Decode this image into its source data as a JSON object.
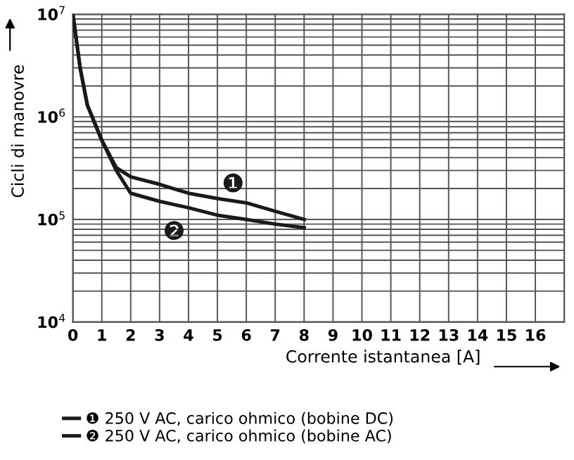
{
  "chart_data": {
    "type": "line",
    "xlabel": "Corrente istantanea [A]",
    "ylabel": "Cicli di manovre",
    "log": "y",
    "grid": true,
    "legend": "bottom",
    "line_style": "solid",
    "marker": "none",
    "xlim": [
      0,
      17
    ],
    "xticks": [
      0,
      1,
      2,
      3,
      4,
      5,
      6,
      7,
      8,
      9,
      10,
      11,
      12,
      13,
      14,
      15,
      16
    ],
    "ylim": [
      10000,
      10000000
    ],
    "yticks": [
      {
        "value": 10000,
        "label": "10$^{4}$"
      },
      {
        "value": 100000,
        "label": "10$^{5}$"
      },
      {
        "value": 1000000,
        "label": "10$^{6}$"
      },
      {
        "value": 10000000,
        "label": "10$^{7}$"
      }
    ],
    "series": [
      {
        "name": "❶ 250 V AC, carico ohmico (bobine DC)",
        "color": "#1a1a1a",
        "x": [
          0,
          0.25,
          0.5,
          1,
          1.5,
          2,
          3,
          4,
          5,
          6,
          7,
          8
        ],
        "values": [
          10000000,
          3000000,
          1300000,
          590000,
          320000,
          260000,
          220000,
          180000,
          160000,
          145000,
          120000,
          100000
        ]
      },
      {
        "name": "❷ 250 V AC, carico ohmico (bobine AC)",
        "color": "#1a1a1a",
        "x": [
          0,
          0.25,
          0.5,
          1,
          1.5,
          2,
          3,
          4,
          5,
          6,
          7,
          8
        ],
        "values": [
          10000000,
          3000000,
          1300000,
          590000,
          300000,
          180000,
          150000,
          130000,
          110000,
          100000,
          90000,
          83000
        ]
      }
    ],
    "annotations": [
      "❶",
      "❷"
    ]
  }
}
